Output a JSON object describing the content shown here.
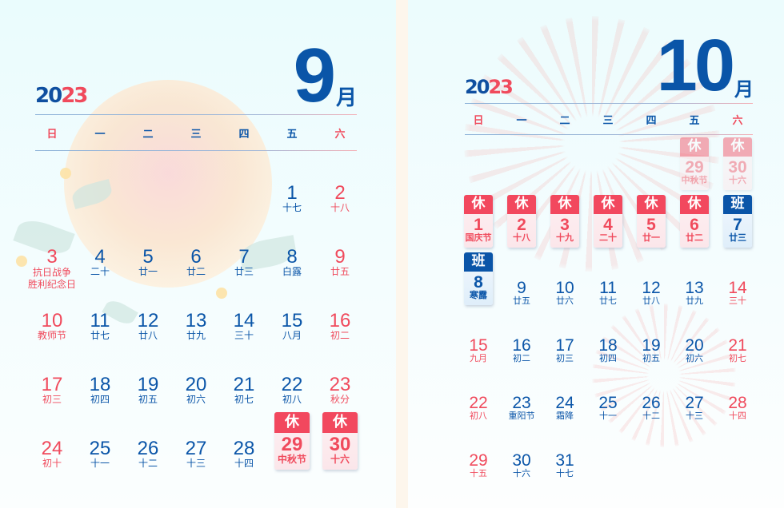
{
  "year": {
    "part_a": "20",
    "part_b": "23"
  },
  "weekdays": [
    "日",
    "一",
    "二",
    "三",
    "四",
    "五",
    "六"
  ],
  "colors": {
    "blue": "#0a55a8",
    "red": "#f04a5c",
    "rest_badge": "#f2485e",
    "work_badge": "#0a55a8"
  },
  "months": [
    {
      "number": "9",
      "suffix": "月",
      "weeks": [
        [
          null,
          null,
          null,
          null,
          null,
          {
            "d": "1",
            "l": "十七",
            "c": "blue"
          },
          {
            "d": "2",
            "l": "十八",
            "c": "red"
          }
        ],
        [
          {
            "d": "3",
            "l": "抗日战争\n胜利纪念日",
            "c": "red"
          },
          {
            "d": "4",
            "l": "二十",
            "c": "blue"
          },
          {
            "d": "5",
            "l": "廿一",
            "c": "blue"
          },
          {
            "d": "6",
            "l": "廿二",
            "c": "blue"
          },
          {
            "d": "7",
            "l": "廿三",
            "c": "blue"
          },
          {
            "d": "8",
            "l": "白露",
            "c": "blue"
          },
          {
            "d": "9",
            "l": "廿五",
            "c": "red"
          }
        ],
        [
          {
            "d": "10",
            "l": "教师节",
            "c": "red"
          },
          {
            "d": "11",
            "l": "廿七",
            "c": "blue"
          },
          {
            "d": "12",
            "l": "廿八",
            "c": "blue"
          },
          {
            "d": "13",
            "l": "廿九",
            "c": "blue"
          },
          {
            "d": "14",
            "l": "三十",
            "c": "blue"
          },
          {
            "d": "15",
            "l": "八月",
            "c": "blue"
          },
          {
            "d": "16",
            "l": "初二",
            "c": "red"
          }
        ],
        [
          {
            "d": "17",
            "l": "初三",
            "c": "red"
          },
          {
            "d": "18",
            "l": "初四",
            "c": "blue"
          },
          {
            "d": "19",
            "l": "初五",
            "c": "blue"
          },
          {
            "d": "20",
            "l": "初六",
            "c": "blue"
          },
          {
            "d": "21",
            "l": "初七",
            "c": "blue"
          },
          {
            "d": "22",
            "l": "初八",
            "c": "blue"
          },
          {
            "d": "23",
            "l": "秋分",
            "c": "red"
          }
        ],
        [
          {
            "d": "24",
            "l": "初十",
            "c": "red"
          },
          {
            "d": "25",
            "l": "十一",
            "c": "blue"
          },
          {
            "d": "26",
            "l": "十二",
            "c": "blue"
          },
          {
            "d": "27",
            "l": "十三",
            "c": "blue"
          },
          {
            "d": "28",
            "l": "十四",
            "c": "blue"
          },
          {
            "d": "29",
            "l": "中秋节",
            "c": "red",
            "badge": "休"
          },
          {
            "d": "30",
            "l": "十六",
            "c": "red",
            "badge": "休"
          }
        ]
      ]
    },
    {
      "number": "10",
      "suffix": "月",
      "weeks": [
        [
          null,
          null,
          null,
          null,
          null,
          {
            "d": "29",
            "l": "中秋节",
            "c": "red",
            "badge": "休",
            "faded": true
          },
          {
            "d": "30",
            "l": "十六",
            "c": "red",
            "badge": "休",
            "faded": true
          }
        ],
        [
          {
            "d": "1",
            "l": "国庆节",
            "c": "red",
            "badge": "休"
          },
          {
            "d": "2",
            "l": "十八",
            "c": "red",
            "badge": "休"
          },
          {
            "d": "3",
            "l": "十九",
            "c": "red",
            "badge": "休"
          },
          {
            "d": "4",
            "l": "二十",
            "c": "red",
            "badge": "休"
          },
          {
            "d": "5",
            "l": "廿一",
            "c": "red",
            "badge": "休"
          },
          {
            "d": "6",
            "l": "廿二",
            "c": "red",
            "badge": "休"
          },
          {
            "d": "7",
            "l": "廿三",
            "c": "blue",
            "badge": "班"
          }
        ],
        [
          {
            "d": "8",
            "l": "寒露",
            "c": "blue",
            "badge": "班"
          },
          {
            "d": "9",
            "l": "廿五",
            "c": "blue"
          },
          {
            "d": "10",
            "l": "廿六",
            "c": "blue"
          },
          {
            "d": "11",
            "l": "廿七",
            "c": "blue"
          },
          {
            "d": "12",
            "l": "廿八",
            "c": "blue"
          },
          {
            "d": "13",
            "l": "廿九",
            "c": "blue"
          },
          {
            "d": "14",
            "l": "三十",
            "c": "red"
          }
        ],
        [
          {
            "d": "15",
            "l": "九月",
            "c": "red"
          },
          {
            "d": "16",
            "l": "初二",
            "c": "blue"
          },
          {
            "d": "17",
            "l": "初三",
            "c": "blue"
          },
          {
            "d": "18",
            "l": "初四",
            "c": "blue"
          },
          {
            "d": "19",
            "l": "初五",
            "c": "blue"
          },
          {
            "d": "20",
            "l": "初六",
            "c": "blue"
          },
          {
            "d": "21",
            "l": "初七",
            "c": "red"
          }
        ],
        [
          {
            "d": "22",
            "l": "初八",
            "c": "red"
          },
          {
            "d": "23",
            "l": "重阳节",
            "c": "blue"
          },
          {
            "d": "24",
            "l": "霜降",
            "c": "blue"
          },
          {
            "d": "25",
            "l": "十一",
            "c": "blue"
          },
          {
            "d": "26",
            "l": "十二",
            "c": "blue"
          },
          {
            "d": "27",
            "l": "十三",
            "c": "blue"
          },
          {
            "d": "28",
            "l": "十四",
            "c": "red"
          }
        ],
        [
          {
            "d": "29",
            "l": "十五",
            "c": "red"
          },
          {
            "d": "30",
            "l": "十六",
            "c": "blue"
          },
          {
            "d": "31",
            "l": "十七",
            "c": "blue"
          },
          null,
          null,
          null,
          null
        ]
      ]
    }
  ]
}
